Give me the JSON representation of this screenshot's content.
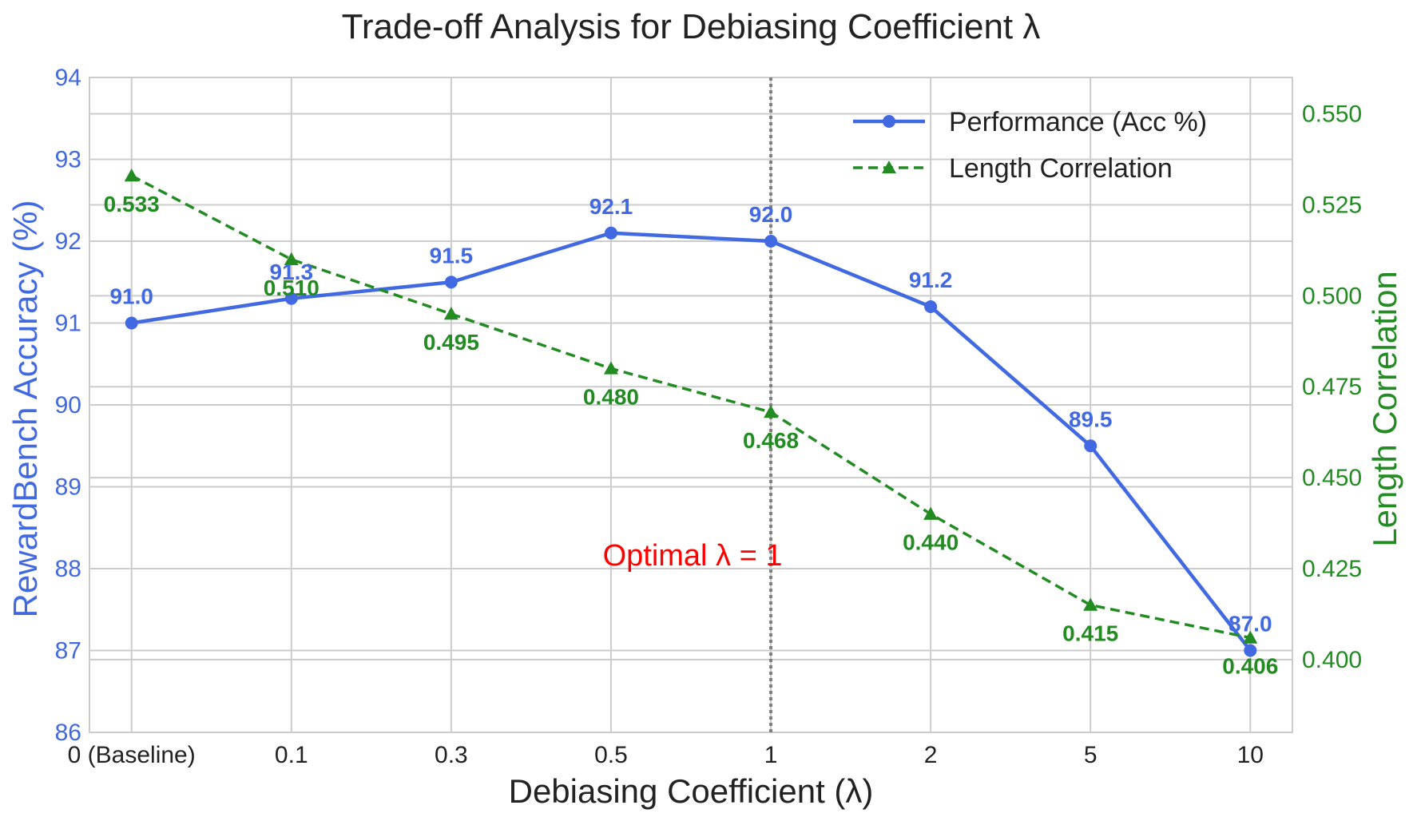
{
  "chart_data": {
    "type": "line",
    "title": "Trade-off Analysis for Debiasing Coefficient λ",
    "xlabel": "Debiasing Coefficient (λ)",
    "categories": [
      "0 (Baseline)",
      "0.1",
      "0.3",
      "0.5",
      "1",
      "2",
      "5",
      "10"
    ],
    "y_left": {
      "label": "RewardBench Accuracy (%)",
      "lim": [
        86,
        94
      ],
      "ticks": [
        86,
        87,
        88,
        89,
        90,
        91,
        92,
        93,
        94
      ],
      "tick_labels": [
        "86",
        "87",
        "88",
        "89",
        "90",
        "91",
        "92",
        "93",
        "94"
      ],
      "color": "#4169e1"
    },
    "y_right": {
      "label": "Length Correlation",
      "lim": [
        0.38,
        0.56
      ],
      "ticks": [
        0.4,
        0.425,
        0.45,
        0.475,
        0.5,
        0.525,
        0.55
      ],
      "tick_labels": [
        "0.400",
        "0.425",
        "0.450",
        "0.475",
        "0.500",
        "0.525",
        "0.550"
      ],
      "color": "#228b22"
    },
    "series": [
      {
        "name": "Performance (Acc %)",
        "axis": "left",
        "style": "solid",
        "marker": "circle",
        "color": "#4169e1",
        "values": [
          91.0,
          91.3,
          91.5,
          92.1,
          92.0,
          91.2,
          89.5,
          87.0
        ],
        "labels": [
          "91.0",
          "91.3",
          "91.5",
          "92.1",
          "92.0",
          "91.2",
          "89.5",
          "87.0"
        ]
      },
      {
        "name": "Length Correlation",
        "axis": "right",
        "style": "dashed",
        "marker": "triangle",
        "color": "#228b22",
        "values": [
          0.533,
          0.51,
          0.495,
          0.48,
          0.468,
          0.44,
          0.415,
          0.406
        ],
        "labels": [
          "0.533",
          "0.510",
          "0.495",
          "0.480",
          "0.468",
          "0.440",
          "0.415",
          "0.406"
        ]
      }
    ],
    "annotation": {
      "text": "Optimal λ = 1",
      "at_category": "1",
      "color": "#ff0000",
      "vline_color": "#808080"
    },
    "legend": "top-right",
    "grid": true
  }
}
